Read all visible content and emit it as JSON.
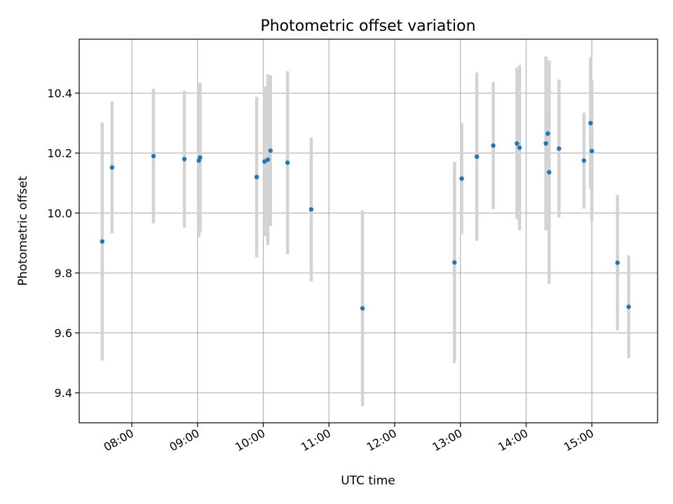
{
  "chart_data": {
    "type": "scatter",
    "title": "Photometric offset variation",
    "xlabel": "UTC time",
    "ylabel": "Photometric offset",
    "grid": true,
    "legend": "none",
    "xlim": [
      7.2,
      16.0
    ],
    "ylim": [
      9.3,
      10.58
    ],
    "x_ticks": [
      8,
      9,
      10,
      11,
      12,
      13,
      14,
      15
    ],
    "x_tick_labels": [
      "08:00",
      "09:00",
      "10:00",
      "11:00",
      "12:00",
      "13:00",
      "14:00",
      "15:00"
    ],
    "y_ticks": [
      9.4,
      9.6,
      9.8,
      10.0,
      10.2,
      10.4
    ],
    "y_tick_labels": [
      "9.4",
      "9.6",
      "9.8",
      "10.0",
      "10.2",
      "10.4"
    ],
    "series": [
      {
        "name": "offset",
        "color": "#1f77b4",
        "error_color": "#d3d3d3",
        "points": [
          {
            "x": 7.55,
            "y": 9.905,
            "yerr": 0.397
          },
          {
            "x": 7.7,
            "y": 10.152,
            "yerr": 0.22
          },
          {
            "x": 8.33,
            "y": 10.19,
            "yerr": 0.225
          },
          {
            "x": 8.8,
            "y": 10.18,
            "yerr": 0.228
          },
          {
            "x": 9.02,
            "y": 10.175,
            "yerr": 0.255
          },
          {
            "x": 9.04,
            "y": 10.185,
            "yerr": 0.25
          },
          {
            "x": 9.9,
            "y": 10.12,
            "yerr": 0.268
          },
          {
            "x": 10.02,
            "y": 10.172,
            "yerr": 0.25
          },
          {
            "x": 10.07,
            "y": 10.178,
            "yerr": 0.285
          },
          {
            "x": 10.11,
            "y": 10.208,
            "yerr": 0.252
          },
          {
            "x": 10.37,
            "y": 10.168,
            "yerr": 0.305
          },
          {
            "x": 10.73,
            "y": 10.012,
            "yerr": 0.24
          },
          {
            "x": 11.51,
            "y": 9.682,
            "yerr": 0.327
          },
          {
            "x": 12.91,
            "y": 9.835,
            "yerr": 0.336
          },
          {
            "x": 13.02,
            "y": 10.115,
            "yerr": 0.185
          },
          {
            "x": 13.25,
            "y": 10.188,
            "yerr": 0.281
          },
          {
            "x": 13.5,
            "y": 10.225,
            "yerr": 0.212
          },
          {
            "x": 13.86,
            "y": 10.232,
            "yerr": 0.253
          },
          {
            "x": 13.9,
            "y": 10.218,
            "yerr": 0.276
          },
          {
            "x": 14.3,
            "y": 10.232,
            "yerr": 0.29
          },
          {
            "x": 14.33,
            "y": 10.265,
            "yerr": 0.086
          },
          {
            "x": 14.35,
            "y": 10.136,
            "yerr": 0.373
          },
          {
            "x": 14.5,
            "y": 10.215,
            "yerr": 0.23
          },
          {
            "x": 14.88,
            "y": 10.175,
            "yerr": 0.16
          },
          {
            "x": 14.98,
            "y": 10.3,
            "yerr": 0.22
          },
          {
            "x": 15.0,
            "y": 10.207,
            "yerr": 0.235
          },
          {
            "x": 15.39,
            "y": 9.834,
            "yerr": 0.226
          },
          {
            "x": 15.56,
            "y": 9.687,
            "yerr": 0.172
          }
        ]
      }
    ]
  }
}
